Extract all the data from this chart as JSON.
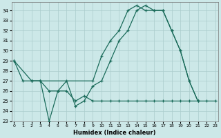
{
  "xlabel": "Humidex (Indice chaleur)",
  "bg_color": "#cce8e8",
  "grid_color": "#aacccc",
  "line_color": "#1a6b5a",
  "xlim": [
    0,
    23
  ],
  "ylim": [
    23,
    34.8
  ],
  "yticks": [
    23,
    24,
    25,
    26,
    27,
    28,
    29,
    30,
    31,
    32,
    33,
    34
  ],
  "xticks": [
    0,
    1,
    2,
    3,
    4,
    5,
    6,
    7,
    8,
    9,
    10,
    11,
    12,
    13,
    14,
    15,
    16,
    17,
    18,
    19,
    20,
    21,
    22,
    23
  ],
  "series": [
    {
      "x": [
        0,
        1,
        2,
        3,
        4,
        5,
        6,
        7,
        8,
        9,
        10,
        11,
        12,
        13,
        14,
        15,
        16,
        17,
        18,
        19,
        20,
        21
      ],
      "y": [
        29,
        27,
        27,
        27,
        23,
        26,
        27,
        24.5,
        25,
        26.5,
        27,
        29,
        31,
        32,
        34,
        34.5,
        34,
        34,
        32,
        30,
        27,
        25
      ]
    },
    {
      "x": [
        0,
        2,
        9,
        10,
        11,
        12,
        13,
        14,
        15,
        16,
        17,
        18,
        19,
        20,
        21
      ],
      "y": [
        29,
        27,
        27,
        29.5,
        31,
        32,
        34,
        34.5,
        34,
        34,
        34,
        32,
        30,
        27,
        25
      ]
    },
    {
      "x": [
        2,
        3,
        4,
        5,
        6,
        7,
        8,
        9,
        10,
        11,
        12,
        13,
        14,
        15,
        16,
        17,
        18,
        19,
        20,
        21,
        22,
        23
      ],
      "y": [
        27,
        27,
        26,
        26,
        26,
        25,
        25.5,
        25,
        25,
        25,
        25,
        25,
        25,
        25,
        25,
        25,
        25,
        25,
        25,
        25,
        25,
        25
      ]
    }
  ]
}
